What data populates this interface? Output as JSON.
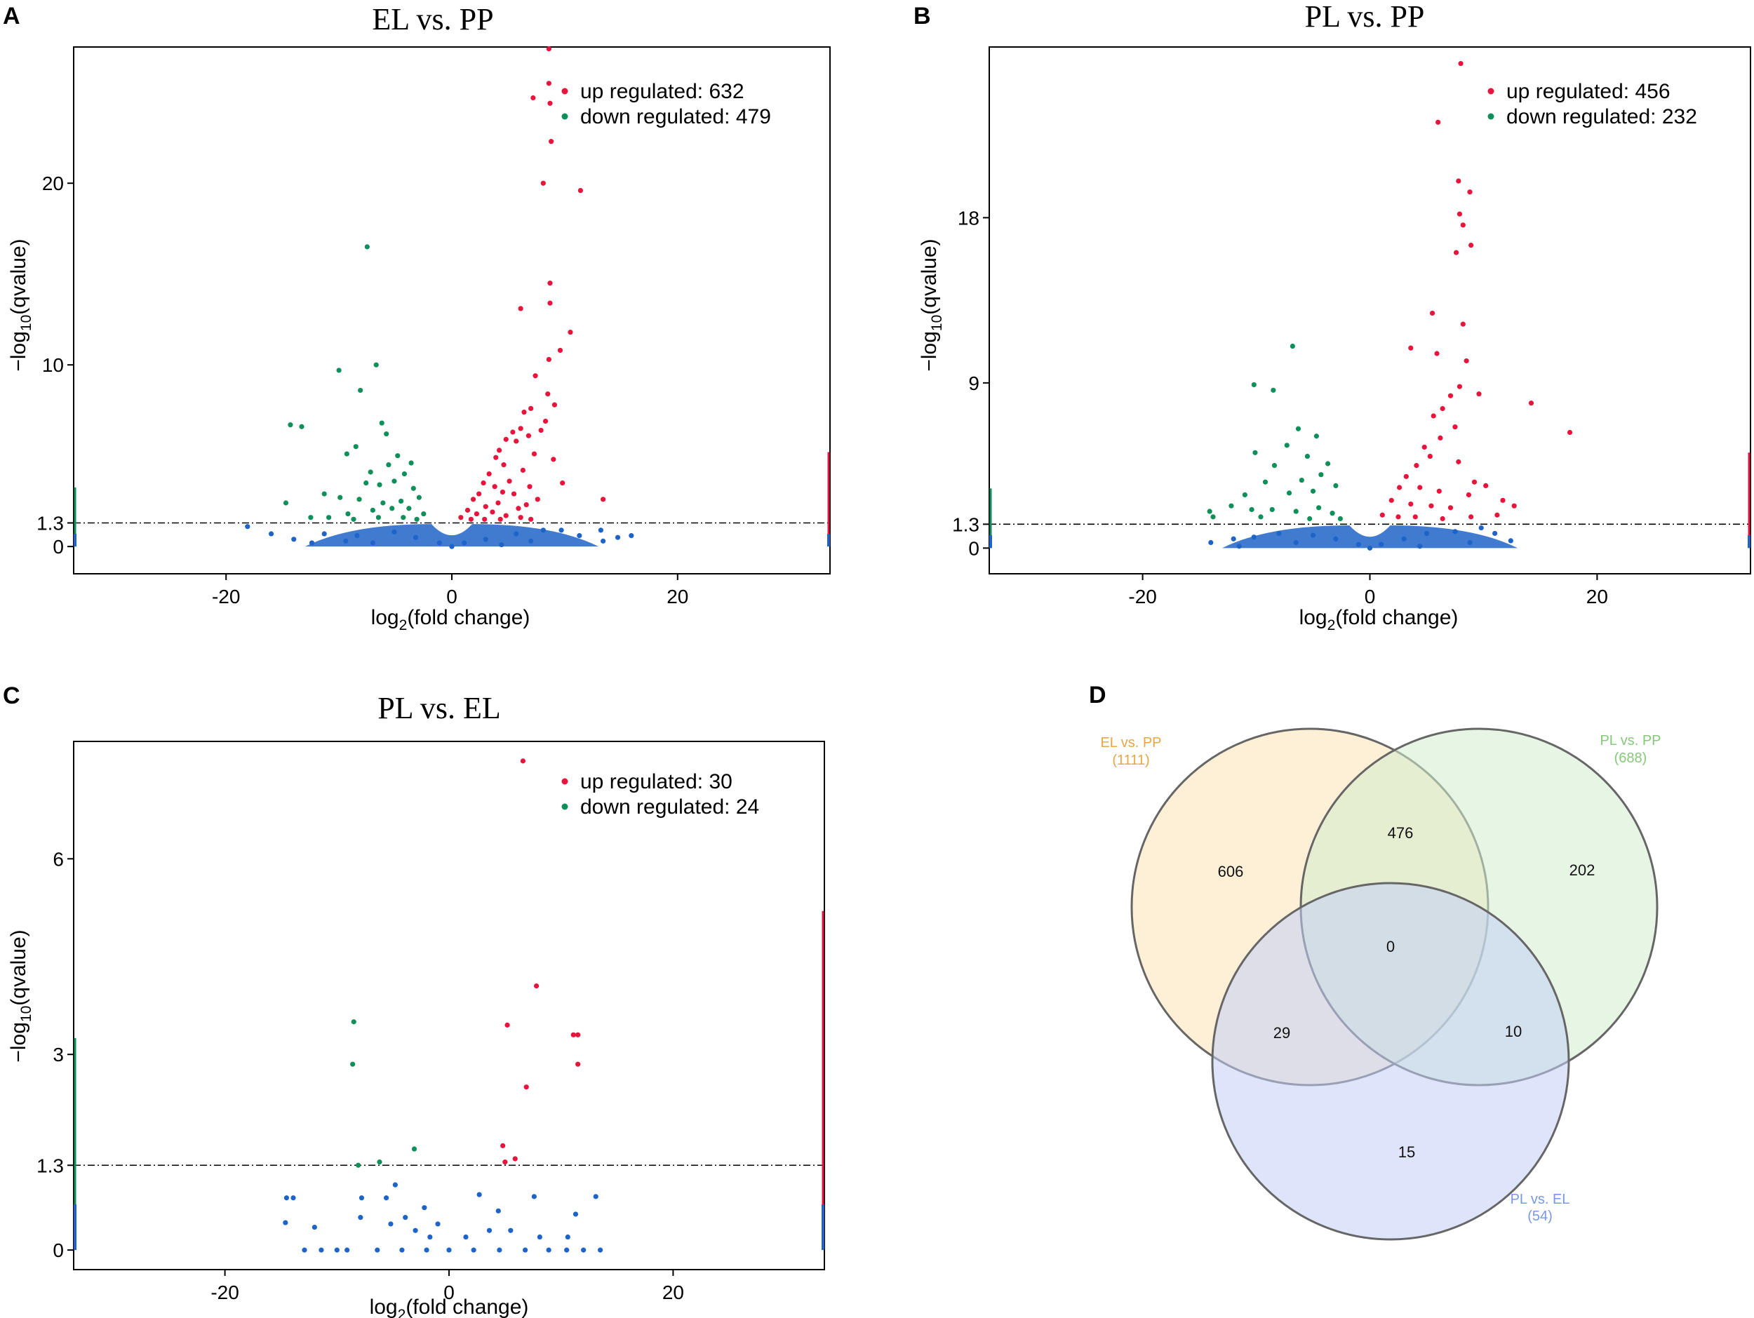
{
  "colors": {
    "up": "#e8143c",
    "down": "#0f8f5a",
    "ns": "#1e64c8",
    "venn_a": "#e9a545",
    "venn_b": "#86c87a",
    "venn_c": "#7897e4"
  },
  "chart_data": [
    {
      "panel": "A",
      "type": "scatter",
      "title": "EL vs. PP",
      "xlabel": "log2(fold change)",
      "ylabel": "−log10(qvalue)",
      "xlim": [
        -33.5,
        33.5
      ],
      "ylim": [
        -1.5,
        27.5
      ],
      "xticks": [
        -20,
        0,
        20
      ],
      "yticks": [
        0,
        1.3,
        10,
        20
      ],
      "threshold": 1.3,
      "legend": {
        "position": "top-right",
        "up_label": "up regulated: 632",
        "down_label": "down regulated: 479"
      },
      "up_points": [
        [
          8.6,
          27.4
        ],
        [
          8.6,
          25.5
        ],
        [
          7.2,
          24.7
        ],
        [
          8.7,
          24.4
        ],
        [
          8.8,
          22.3
        ],
        [
          8.1,
          20.0
        ],
        [
          11.4,
          19.6
        ],
        [
          8.7,
          14.5
        ],
        [
          8.7,
          13.4
        ],
        [
          6.1,
          13.1
        ],
        [
          10.5,
          11.8
        ],
        [
          9.6,
          10.8
        ],
        [
          8.6,
          10.3
        ],
        [
          7.4,
          9.4
        ],
        [
          8.5,
          8.4
        ],
        [
          9.1,
          7.8
        ],
        [
          7.0,
          7.6
        ],
        [
          6.4,
          7.4
        ],
        [
          8.3,
          6.9
        ],
        [
          7.9,
          6.4
        ],
        [
          6.8,
          6.1
        ],
        [
          6.1,
          6.5
        ],
        [
          5.4,
          6.3
        ],
        [
          4.8,
          5.9
        ],
        [
          4.2,
          5.3
        ],
        [
          5.7,
          5.8
        ],
        [
          7.3,
          5.1
        ],
        [
          9.0,
          4.8
        ],
        [
          3.9,
          4.9
        ],
        [
          4.6,
          4.5
        ],
        [
          6.3,
          4.2
        ],
        [
          9.8,
          3.5
        ],
        [
          6.9,
          3.3
        ],
        [
          5.1,
          3.6
        ],
        [
          3.3,
          4.0
        ],
        [
          3.8,
          3.3
        ],
        [
          2.8,
          3.5
        ],
        [
          2.4,
          2.9
        ],
        [
          4.5,
          3.0
        ],
        [
          5.5,
          2.9
        ],
        [
          7.6,
          2.6
        ],
        [
          1.9,
          2.6
        ],
        [
          13.4,
          2.6
        ],
        [
          3.0,
          2.2
        ],
        [
          4.1,
          2.4
        ],
        [
          5.9,
          2.1
        ],
        [
          6.6,
          2.3
        ],
        [
          1.4,
          2.0
        ],
        [
          2.2,
          1.8
        ],
        [
          3.6,
          1.9
        ],
        [
          4.8,
          1.7
        ],
        [
          6.1,
          1.6
        ],
        [
          0.8,
          1.6
        ],
        [
          1.7,
          1.5
        ],
        [
          2.9,
          1.5
        ],
        [
          4.3,
          1.5
        ],
        [
          7.0,
          1.5
        ]
      ],
      "down_points": [
        [
          -7.5,
          16.5
        ],
        [
          -6.7,
          10.0
        ],
        [
          -10.0,
          9.7
        ],
        [
          -8.1,
          8.6
        ],
        [
          -14.3,
          6.7
        ],
        [
          -13.3,
          6.6
        ],
        [
          -6.2,
          6.8
        ],
        [
          -5.8,
          6.2
        ],
        [
          -9.3,
          5.1
        ],
        [
          -8.5,
          5.5
        ],
        [
          -4.8,
          5.0
        ],
        [
          -5.6,
          4.5
        ],
        [
          -3.6,
          4.6
        ],
        [
          -7.2,
          4.1
        ],
        [
          -4.2,
          4.0
        ],
        [
          -5.1,
          3.6
        ],
        [
          -3.4,
          3.2
        ],
        [
          -6.4,
          3.4
        ],
        [
          -7.6,
          3.5
        ],
        [
          -11.3,
          2.9
        ],
        [
          -14.7,
          2.4
        ],
        [
          -9.9,
          2.7
        ],
        [
          -8.2,
          2.6
        ],
        [
          -2.9,
          2.7
        ],
        [
          -4.5,
          2.5
        ],
        [
          -6.1,
          2.4
        ],
        [
          -3.8,
          2.1
        ],
        [
          -5.3,
          2.1
        ],
        [
          -7.0,
          2.0
        ],
        [
          -9.2,
          1.8
        ],
        [
          -10.9,
          1.6
        ],
        [
          -12.5,
          1.6
        ],
        [
          -2.5,
          1.8
        ],
        [
          -4.3,
          1.6
        ],
        [
          -6.5,
          1.6
        ],
        [
          -8.7,
          1.5
        ],
        [
          -3.1,
          1.5
        ]
      ],
      "ns_points": [
        [
          -18.1,
          1.1
        ],
        [
          -14.0,
          0.4
        ],
        [
          -11.3,
          0.7
        ],
        [
          -8.4,
          0.6
        ],
        [
          -5.1,
          0.8
        ],
        [
          -3.2,
          0.5
        ],
        [
          -1.1,
          0.2
        ],
        [
          0.0,
          0.0
        ],
        [
          1.1,
          0.2
        ],
        [
          3.0,
          0.4
        ],
        [
          5.7,
          0.7
        ],
        [
          8.1,
          0.9
        ],
        [
          9.7,
          0.9
        ],
        [
          13.2,
          0.9
        ],
        [
          13.4,
          0.3
        ],
        [
          14.7,
          0.5
        ],
        [
          15.9,
          0.6
        ],
        [
          -7.0,
          0.2
        ],
        [
          -9.4,
          0.3
        ],
        [
          4.4,
          0.1
        ],
        [
          7.0,
          0.3
        ],
        [
          11.3,
          0.6
        ],
        [
          -12.4,
          0.2
        ],
        [
          -16.0,
          0.7
        ]
      ],
      "venn": null
    },
    {
      "panel": "B",
      "type": "scatter",
      "title": "PL vs. PP",
      "xlabel": "log2(fold change)",
      "ylabel": "−log10(qvalue)",
      "xlim": [
        -33.5,
        33.5
      ],
      "ylim": [
        -1.4,
        27.3
      ],
      "xticks": [
        -20,
        0,
        20
      ],
      "yticks": [
        0,
        1.3,
        9,
        18
      ],
      "threshold": 1.3,
      "legend": {
        "position": "top-right",
        "up_label": "up regulated: 456",
        "down_label": "down regulated: 232"
      },
      "up_points": [
        [
          8.0,
          26.4
        ],
        [
          6.0,
          23.2
        ],
        [
          7.8,
          20.0
        ],
        [
          8.8,
          19.4
        ],
        [
          7.9,
          18.2
        ],
        [
          8.2,
          17.6
        ],
        [
          8.9,
          16.5
        ],
        [
          7.6,
          16.1
        ],
        [
          5.5,
          12.8
        ],
        [
          8.2,
          12.2
        ],
        [
          3.6,
          10.9
        ],
        [
          5.9,
          10.6
        ],
        [
          8.5,
          10.2
        ],
        [
          7.9,
          8.8
        ],
        [
          14.2,
          7.9
        ],
        [
          9.6,
          8.4
        ],
        [
          7.1,
          8.3
        ],
        [
          6.4,
          7.6
        ],
        [
          5.6,
          7.2
        ],
        [
          17.6,
          6.3
        ],
        [
          7.5,
          6.6
        ],
        [
          6.2,
          6.0
        ],
        [
          4.8,
          5.5
        ],
        [
          5.3,
          5.0
        ],
        [
          7.8,
          4.7
        ],
        [
          4.1,
          4.5
        ],
        [
          9.2,
          3.6
        ],
        [
          3.2,
          3.9
        ],
        [
          2.6,
          3.3
        ],
        [
          4.4,
          3.3
        ],
        [
          6.1,
          3.1
        ],
        [
          8.7,
          2.9
        ],
        [
          10.2,
          3.4
        ],
        [
          11.7,
          2.6
        ],
        [
          1.9,
          2.6
        ],
        [
          3.6,
          2.4
        ],
        [
          5.4,
          2.3
        ],
        [
          7.1,
          2.2
        ],
        [
          12.7,
          2.3
        ],
        [
          1.1,
          1.8
        ],
        [
          2.5,
          1.7
        ],
        [
          4.0,
          1.7
        ],
        [
          6.4,
          1.6
        ],
        [
          8.9,
          1.7
        ],
        [
          11.2,
          1.8
        ]
      ],
      "down_points": [
        [
          -6.8,
          11.0
        ],
        [
          -10.2,
          8.9
        ],
        [
          -8.5,
          8.6
        ],
        [
          -6.3,
          6.5
        ],
        [
          -4.7,
          6.1
        ],
        [
          -7.3,
          5.6
        ],
        [
          -10.1,
          5.2
        ],
        [
          -5.5,
          5.0
        ],
        [
          -3.7,
          4.6
        ],
        [
          -8.4,
          4.5
        ],
        [
          -4.3,
          4.0
        ],
        [
          -6.0,
          3.7
        ],
        [
          -9.2,
          3.6
        ],
        [
          -3.0,
          3.4
        ],
        [
          -5.0,
          3.1
        ],
        [
          -7.1,
          3.0
        ],
        [
          -11.0,
          2.9
        ],
        [
          -14.1,
          2.0
        ],
        [
          -13.8,
          1.7
        ],
        [
          -12.2,
          2.3
        ],
        [
          -10.4,
          2.1
        ],
        [
          -8.6,
          2.1
        ],
        [
          -6.5,
          2.0
        ],
        [
          -4.5,
          2.2
        ],
        [
          -3.3,
          1.9
        ],
        [
          -9.6,
          1.7
        ],
        [
          -5.3,
          1.6
        ],
        [
          -2.6,
          1.6
        ]
      ],
      "ns_points": [
        [
          -14.0,
          0.3
        ],
        [
          -12.0,
          0.5
        ],
        [
          -10.2,
          0.6
        ],
        [
          -8.0,
          0.8
        ],
        [
          -5.0,
          0.7
        ],
        [
          -3.0,
          0.5
        ],
        [
          -1.0,
          0.2
        ],
        [
          0.0,
          0.0
        ],
        [
          1.0,
          0.2
        ],
        [
          3.0,
          0.5
        ],
        [
          5.0,
          0.8
        ],
        [
          7.5,
          0.9
        ],
        [
          9.8,
          1.1
        ],
        [
          12.4,
          0.4
        ],
        [
          11.0,
          0.8
        ],
        [
          -6.5,
          0.3
        ],
        [
          -11.5,
          0.1
        ],
        [
          8.8,
          0.3
        ],
        [
          4.4,
          0.1
        ]
      ],
      "venn": null
    },
    {
      "panel": "C",
      "type": "scatter",
      "title": "PL vs. EL",
      "xlabel": "log2(fold change)",
      "ylabel": "−log10(qvalue)",
      "xlim": [
        -33.5,
        33.5
      ],
      "ylim": [
        -0.3,
        7.8
      ],
      "xticks": [
        -20,
        0,
        20
      ],
      "yticks": [
        0,
        1.3,
        3,
        6
      ],
      "threshold": 1.3,
      "legend": {
        "position": "top-right",
        "up_label": "up regulated: 30",
        "down_label": "down regulated: 24"
      },
      "up_points": [
        [
          6.6,
          7.5
        ],
        [
          7.8,
          4.05
        ],
        [
          5.2,
          3.45
        ],
        [
          11.1,
          3.3
        ],
        [
          11.5,
          3.3
        ],
        [
          11.5,
          2.85
        ],
        [
          6.9,
          2.5
        ],
        [
          4.8,
          1.6
        ],
        [
          5.9,
          1.4
        ],
        [
          5.0,
          1.35
        ]
      ],
      "down_points": [
        [
          -8.5,
          3.5
        ],
        [
          -8.6,
          2.85
        ],
        [
          -3.1,
          1.55
        ],
        [
          -6.2,
          1.35
        ],
        [
          -8.1,
          1.3
        ]
      ],
      "ns_points": [
        [
          -14.5,
          0.8
        ],
        [
          -13.9,
          0.8
        ],
        [
          -14.6,
          0.42
        ],
        [
          -12.0,
          0.35
        ],
        [
          -12.9,
          0.0
        ],
        [
          -11.4,
          0.0
        ],
        [
          -10.0,
          0.0
        ],
        [
          -7.8,
          0.8
        ],
        [
          -7.9,
          0.5
        ],
        [
          -4.8,
          1.0
        ],
        [
          -5.6,
          0.8
        ],
        [
          -2.2,
          0.65
        ],
        [
          -1.0,
          0.4
        ],
        [
          -9.1,
          0.0
        ],
        [
          -6.4,
          0.0
        ],
        [
          -4.2,
          0.0
        ],
        [
          -2.0,
          0.0
        ],
        [
          0.0,
          0.0
        ],
        [
          2.2,
          0.0
        ],
        [
          4.5,
          0.0
        ],
        [
          6.8,
          0.0
        ],
        [
          8.9,
          0.0
        ],
        [
          10.5,
          0.0
        ],
        [
          12.0,
          0.0
        ],
        [
          13.5,
          0.0
        ],
        [
          13.1,
          0.82
        ],
        [
          11.3,
          0.55
        ],
        [
          10.6,
          0.2
        ],
        [
          7.6,
          0.82
        ],
        [
          2.7,
          0.85
        ],
        [
          4.4,
          0.6
        ],
        [
          -3.9,
          0.5
        ],
        [
          -3.0,
          0.3
        ],
        [
          -5.2,
          0.4
        ],
        [
          3.6,
          0.3
        ],
        [
          5.5,
          0.3
        ],
        [
          -1.7,
          0.2
        ],
        [
          1.5,
          0.2
        ],
        [
          8.1,
          0.2
        ]
      ],
      "venn": null
    },
    {
      "panel": "D",
      "type": "venn",
      "title": "",
      "sets": [
        {
          "name": "EL vs. PP",
          "count": "(1111)"
        },
        {
          "name": "PL vs. PP",
          "count": "(688)"
        },
        {
          "name": "PL vs. EL",
          "count": "(54)"
        }
      ],
      "regions": {
        "a_only": "606",
        "ab": "476",
        "b_only": "202",
        "abc": "0",
        "ac": "29",
        "bc": "10",
        "c_only": "15"
      }
    }
  ]
}
